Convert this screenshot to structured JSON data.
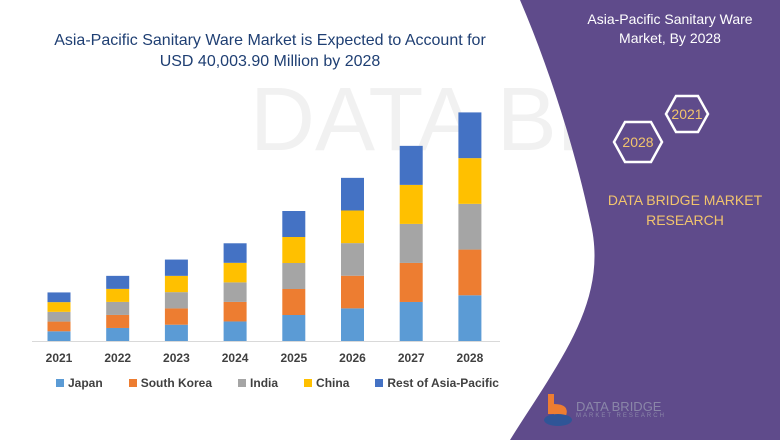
{
  "header": {
    "title_line1": "Asia-Pacific Sanitary Ware Market is Expected to Account for",
    "title_line2": "USD 40,003.90 Million by 2028"
  },
  "panel": {
    "title_line1": "Asia-Pacific Sanitary Ware",
    "title_line2": "Market, By 2028",
    "hex_start": "2021",
    "hex_end": "2028",
    "brand_line1": "DATA BRIDGE MARKET",
    "brand_line2": "RESEARCH",
    "logo_text": "DATA BRIDGE",
    "logo_sub": "MARKET RESEARCH",
    "bg_color": "#5f4b8b",
    "accent_color": "#f2c46d"
  },
  "chart_data": {
    "type": "bar",
    "stacked": true,
    "title": "Asia-Pacific Sanitary Ware Market is Expected to Account for USD 40,003.90 Million by 2028",
    "xlabel": "",
    "ylabel": "",
    "ylim": [
      0,
      42000
    ],
    "grid": false,
    "legend": "bottom",
    "categories": [
      "2021",
      "2022",
      "2023",
      "2024",
      "2025",
      "2026",
      "2027",
      "2028"
    ],
    "series": [
      {
        "name": "Japan",
        "color": "#5b9bd5",
        "values": [
          1700,
          2280,
          2850,
          3420,
          4550,
          5710,
          6830,
          8000
        ]
      },
      {
        "name": "South Korea",
        "color": "#ed7d31",
        "values": [
          1700,
          2280,
          2850,
          3420,
          4550,
          5710,
          6830,
          8000
        ]
      },
      {
        "name": "India",
        "color": "#a5a5a5",
        "values": [
          1700,
          2280,
          2850,
          3420,
          4550,
          5710,
          6830,
          8000
        ]
      },
      {
        "name": "China",
        "color": "#ffc000",
        "values": [
          1700,
          2280,
          2850,
          3420,
          4550,
          5710,
          6830,
          8000
        ]
      },
      {
        "name": "Rest of Asia-Pacific",
        "color": "#4472c4",
        "values": [
          1700,
          2280,
          2850,
          3420,
          4550,
          5710,
          6830,
          8004
        ]
      }
    ]
  }
}
